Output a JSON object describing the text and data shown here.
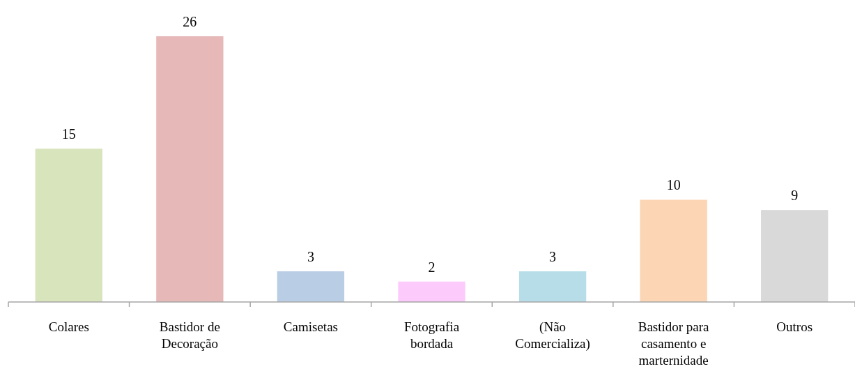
{
  "chart_data": {
    "type": "bar",
    "categories": [
      "Colares",
      "Bastidor de Decoração",
      "Camisetas",
      "Fotografia bordada",
      "(Não Comercializa)",
      "Bastidor para casamento e marternidade",
      "Outros"
    ],
    "values": [
      15,
      26,
      3,
      2,
      3,
      10,
      9
    ],
    "colors": [
      "#d8e4bc",
      "#e6b9b8",
      "#b9cde5",
      "#fccbfc",
      "#b7dee8",
      "#fcd5b5",
      "#d9d9d9"
    ],
    "data_labels": true
  }
}
